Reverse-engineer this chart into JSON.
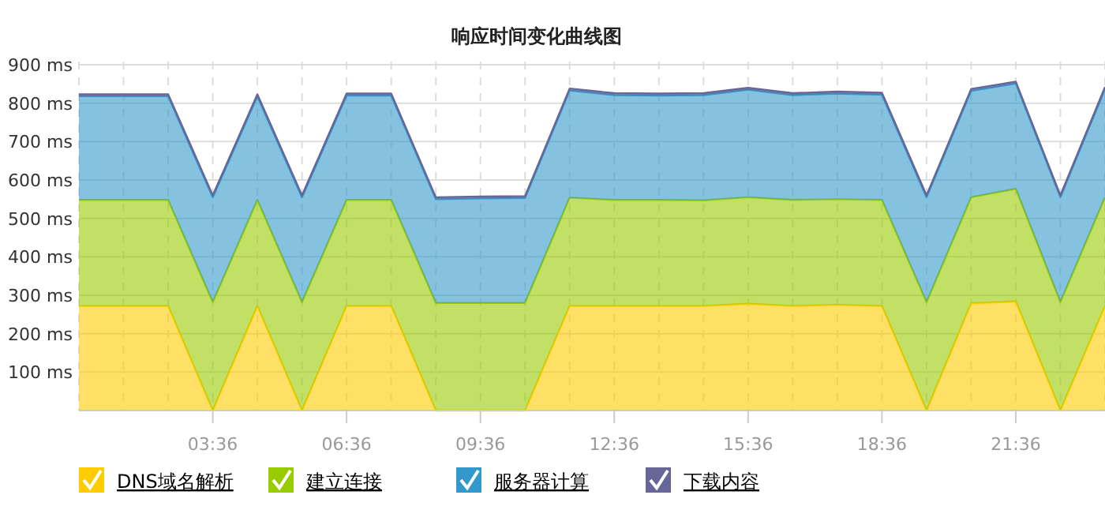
{
  "chart_data": {
    "type": "area",
    "title": "响应时间变化曲线图",
    "stacked": true,
    "grid": true,
    "legend": "bottom left",
    "x": [
      0.6,
      1.6,
      2.6,
      3.6,
      4.6,
      5.6,
      6.6,
      7.6,
      8.6,
      9.6,
      10.6,
      11.6,
      12.6,
      13.6,
      14.6,
      15.6,
      16.6,
      17.6,
      18.6,
      19.6,
      20.6,
      21.6,
      22.6,
      23.6
    ],
    "xlim": [
      0.6,
      23.6
    ],
    "xticks": [
      {
        "value": 0.6,
        "label": null
      },
      {
        "value": 1.6,
        "label": null
      },
      {
        "value": 2.6,
        "label": null
      },
      {
        "value": 3.6,
        "label": "03:36"
      },
      {
        "value": 4.6,
        "label": null
      },
      {
        "value": 5.6,
        "label": null
      },
      {
        "value": 6.6,
        "label": "06:36"
      },
      {
        "value": 7.6,
        "label": null
      },
      {
        "value": 8.6,
        "label": null
      },
      {
        "value": 9.6,
        "label": "09:36"
      },
      {
        "value": 10.6,
        "label": null
      },
      {
        "value": 11.6,
        "label": null
      },
      {
        "value": 12.6,
        "label": "12:36"
      },
      {
        "value": 13.6,
        "label": null
      },
      {
        "value": 14.6,
        "label": null
      },
      {
        "value": 15.6,
        "label": "15:36"
      },
      {
        "value": 16.6,
        "label": null
      },
      {
        "value": 17.6,
        "label": null
      },
      {
        "value": 18.6,
        "label": "18:36"
      },
      {
        "value": 19.6,
        "label": null
      },
      {
        "value": 20.6,
        "label": null
      },
      {
        "value": 21.6,
        "label": "21:36"
      },
      {
        "value": 22.6,
        "label": null
      },
      {
        "value": 23.6,
        "label": null
      }
    ],
    "ylim": [
      0,
      900
    ],
    "yticks": [
      {
        "value": 100,
        "label": "100 ms"
      },
      {
        "value": 200,
        "label": "200 ms"
      },
      {
        "value": 300,
        "label": "300 ms"
      },
      {
        "value": 400,
        "label": "400 ms"
      },
      {
        "value": 500,
        "label": "500 ms"
      },
      {
        "value": 600,
        "label": "600 ms"
      },
      {
        "value": 700,
        "label": "700 ms"
      },
      {
        "value": 800,
        "label": "800 ms"
      },
      {
        "value": 900,
        "label": "900 ms"
      }
    ],
    "series": [
      {
        "name": "DNS域名解析",
        "color": "#ffcc00",
        "values": [
          272,
          272,
          272,
          0,
          272,
          0,
          272,
          272,
          0,
          0,
          0,
          272,
          272,
          272,
          272,
          278,
          272,
          275,
          272,
          0,
          279,
          284,
          0,
          272
        ]
      },
      {
        "name": "建立连接",
        "color": "#99cc00",
        "values": [
          276,
          276,
          276,
          282,
          276,
          282,
          276,
          276,
          280,
          280,
          280,
          282,
          276,
          276,
          275,
          277,
          276,
          275,
          276,
          282,
          276,
          293,
          282,
          283
        ]
      },
      {
        "name": "服务器计算",
        "color": "#3399cc",
        "values": [
          270,
          270,
          270,
          273,
          270,
          273,
          272,
          272,
          270,
          272,
          273,
          279,
          273,
          272,
          274,
          280,
          273,
          275,
          274,
          273,
          277,
          274,
          273,
          282
        ]
      },
      {
        "name": "下载内容",
        "color": "#666699",
        "values": [
          5,
          5,
          5,
          5,
          5,
          5,
          5,
          5,
          5,
          5,
          5,
          5,
          5,
          5,
          5,
          5,
          5,
          5,
          5,
          5,
          5,
          5,
          5,
          5
        ]
      }
    ]
  }
}
